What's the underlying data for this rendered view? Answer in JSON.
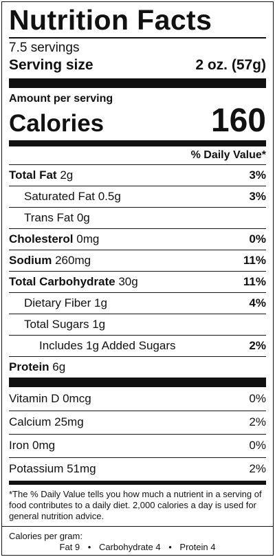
{
  "title": "Nutrition Facts",
  "servings": "7.5 servings",
  "serving_size": {
    "label": "Serving size",
    "value": "2 oz. (57g)"
  },
  "amount_per_serving": "Amount per serving",
  "calories": {
    "label": "Calories",
    "value": "160"
  },
  "daily_value_header": "% Daily Value*",
  "nutrients": {
    "total_fat": {
      "label": "Total Fat",
      "amount": "2g",
      "dv": "3%"
    },
    "saturated_fat": {
      "label": "Saturated Fat 0.5g",
      "dv": "3%"
    },
    "trans_fat": {
      "label": "Trans Fat 0g"
    },
    "cholesterol": {
      "label": "Cholesterol",
      "amount": "0mg",
      "dv": "0%"
    },
    "sodium": {
      "label": "Sodium",
      "amount": "260mg",
      "dv": "11%"
    },
    "total_carbohydrate": {
      "label": "Total Carbohydrate",
      "amount": "30g",
      "dv": "11%"
    },
    "dietary_fiber": {
      "label": "Dietary Fiber 1g",
      "dv": "4%"
    },
    "total_sugars": {
      "label": "Total Sugars 1g"
    },
    "added_sugars": {
      "label": "Includes 1g Added Sugars",
      "dv": "2%"
    },
    "protein": {
      "label": "Protein",
      "amount": "6g"
    }
  },
  "vitamins": [
    {
      "label": "Vitamin D 0mcg",
      "dv": "0%"
    },
    {
      "label": "Calcium 25mg",
      "dv": "2%"
    },
    {
      "label": "Iron 0mg",
      "dv": "0%"
    },
    {
      "label": "Potassium 51mg",
      "dv": "2%"
    }
  ],
  "footnote": "*The % Daily Value tells you how much a nutrient in a serving of food contributes to a daily diet. 2,000 calories a day is used for general nutrition advice.",
  "calories_per_gram": {
    "title": "Calories per gram:",
    "fat": "Fat 9",
    "carbohydrate": "Carbohydrate 4",
    "protein": "Protein 4",
    "separator": "•"
  }
}
